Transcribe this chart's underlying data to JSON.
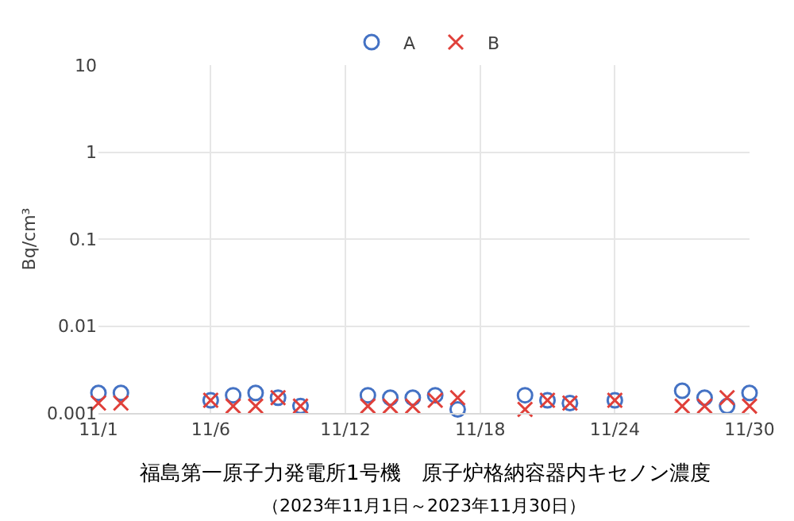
{
  "chart_data": {
    "type": "scatter",
    "title": "福島第一原子力発電所1号機　原子炉格納容器内キセノン濃度",
    "subtitle": "（2023年11月1日～2023年11月30日）",
    "ylabel": "Bq/cm³",
    "x": [
      "2023-11-01",
      "2023-11-02",
      "2023-11-06",
      "2023-11-07",
      "2023-11-08",
      "2023-11-09",
      "2023-11-10",
      "2023-11-13",
      "2023-11-14",
      "2023-11-15",
      "2023-11-16",
      "2023-11-17",
      "2023-11-20",
      "2023-11-21",
      "2023-11-22",
      "2023-11-24",
      "2023-11-27",
      "2023-11-28",
      "2023-11-29",
      "2023-11-30"
    ],
    "series": [
      {
        "name": "A",
        "color": "#4472c4",
        "marker": "circle",
        "values": [
          0.0017,
          0.0017,
          0.0014,
          0.0016,
          0.0017,
          0.0015,
          0.0012,
          0.0016,
          0.0015,
          0.0015,
          0.0016,
          0.0011,
          0.0016,
          0.0014,
          0.0013,
          0.0014,
          0.0018,
          0.0015,
          0.0012,
          0.0017
        ]
      },
      {
        "name": "B",
        "color": "#e0403a",
        "marker": "cross",
        "values": [
          0.0013,
          0.0013,
          0.0014,
          0.0012,
          0.0012,
          0.0015,
          0.0012,
          0.0012,
          0.0012,
          0.0012,
          0.0014,
          0.0015,
          0.0011,
          0.0014,
          0.0013,
          0.0014,
          0.0012,
          0.0012,
          0.0015,
          0.0012
        ]
      }
    ],
    "log": true,
    "ylim": [
      0.001,
      10
    ],
    "yticks": [
      0.001,
      0.01,
      0.1,
      1,
      10
    ],
    "xlim": [
      "2023-11-01",
      "2023-11-30"
    ],
    "xticks": [
      {
        "value": "2023-11-01",
        "label": "11/1"
      },
      {
        "value": "2023-11-06",
        "label": "11/6"
      },
      {
        "value": "2023-11-12",
        "label": "11/12"
      },
      {
        "value": "2023-11-18",
        "label": "11/18"
      },
      {
        "value": "2023-11-24",
        "label": "11/24"
      },
      {
        "value": "2023-11-30",
        "label": "11/30"
      }
    ],
    "grid": true,
    "legend": "top"
  }
}
